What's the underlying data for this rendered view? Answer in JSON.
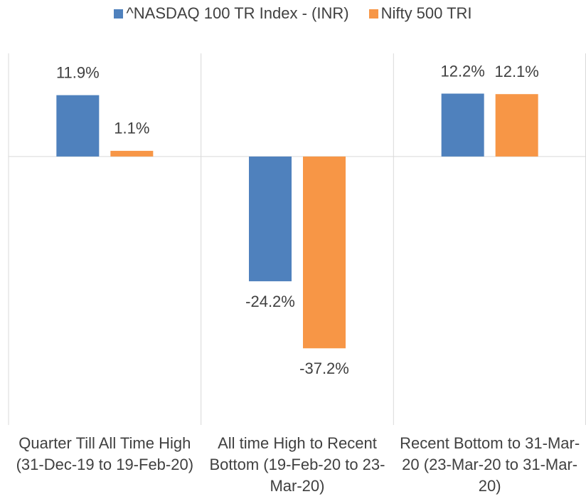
{
  "chart_data": {
    "type": "bar",
    "categories": [
      "Quarter Till All  Time High (31-Dec-19 to 19-Feb-20)",
      "All time High to Recent Bottom (19-Feb-20 to 23-Mar-20)",
      "Recent Bottom to 31-Mar-20 (23-Mar-20 to 31-Mar-20)"
    ],
    "series": [
      {
        "name": "^NASDAQ 100 TR Index - (INR)",
        "color": "#4f81bd",
        "values": [
          11.9,
          -24.2,
          12.2
        ],
        "value_labels": [
          "11.9%",
          "-24.2%",
          "12.2%"
        ]
      },
      {
        "name": "Nifty 500 TRI",
        "color": "#f79646",
        "values": [
          1.1,
          -37.2,
          12.1
        ],
        "value_labels": [
          "1.1%",
          "-37.2%",
          "12.1%"
        ]
      }
    ],
    "ylim": [
      -50,
      20
    ],
    "legend": "top"
  }
}
